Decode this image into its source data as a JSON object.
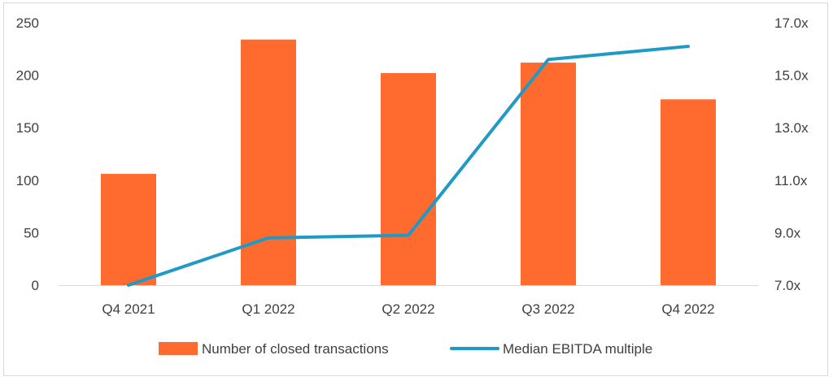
{
  "chart_data": {
    "type": "bar",
    "categories": [
      "Q4 2021",
      "Q1 2022",
      "Q2 2022",
      "Q3 2022",
      "Q4 2022"
    ],
    "series": [
      {
        "name": "Number of closed transactions",
        "type": "bar",
        "axis": "left",
        "values": [
          106,
          234,
          202,
          212,
          177
        ],
        "color": "#ff6b2f"
      },
      {
        "name": "Median EBITDA multiple",
        "type": "line",
        "axis": "right",
        "values": [
          7.0,
          8.8,
          8.9,
          15.6,
          16.1
        ],
        "color": "#1f9ac4"
      }
    ],
    "left_axis": {
      "ylim": [
        0,
        250
      ],
      "ticks": [
        "0",
        "50",
        "100",
        "150",
        "200",
        "250"
      ]
    },
    "right_axis": {
      "ylim": [
        7.0,
        17.0
      ],
      "ticks": [
        "7.0x",
        "9.0x",
        "11.0x",
        "13.0x",
        "15.0x",
        "17.0x"
      ]
    },
    "legend_position": "bottom",
    "grid": false
  }
}
